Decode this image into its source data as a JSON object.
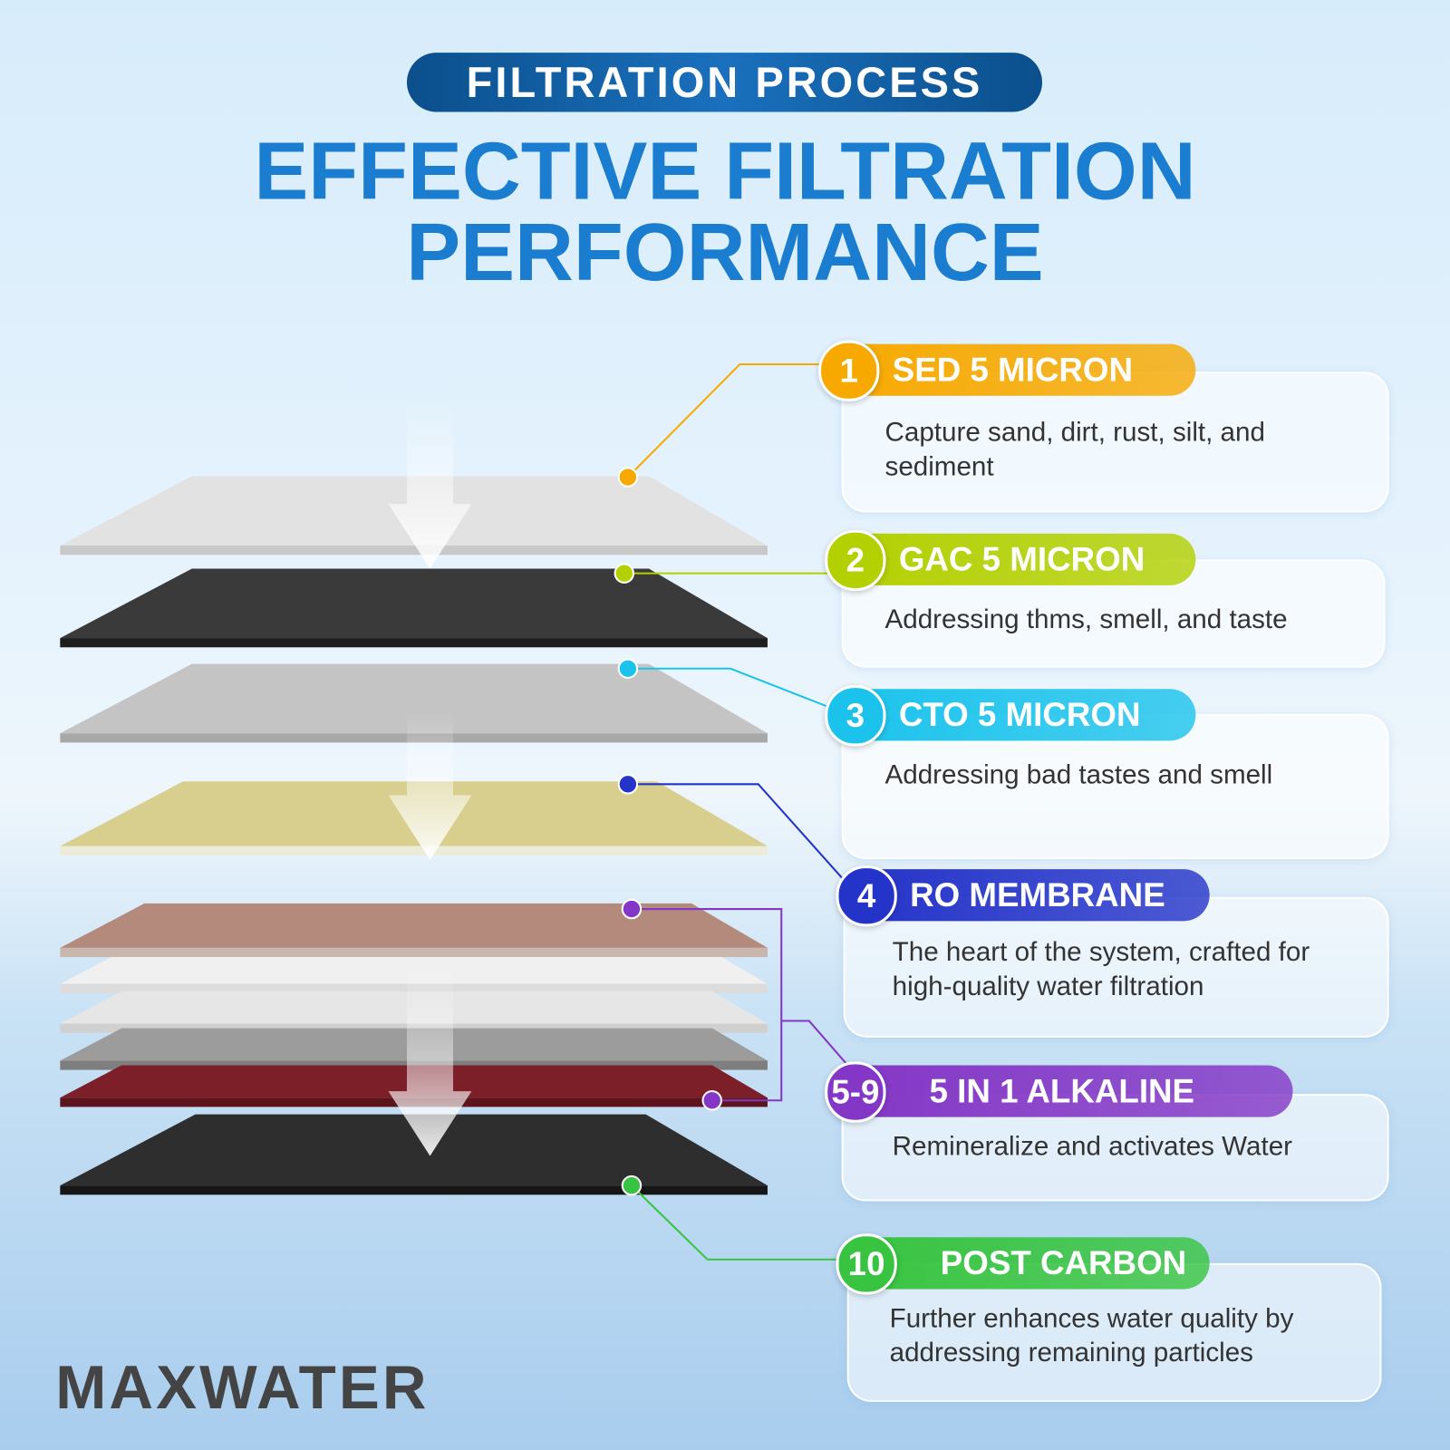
{
  "header": {
    "badge": "FILTRATION PROCESS",
    "title": [
      "EFFECTIVE FILTRATION",
      "PERFORMANCE"
    ]
  },
  "stages": [
    {
      "number": "1",
      "name": "SED 5 MICRON",
      "description": "Capture sand, dirt, rust, silt, and sediment",
      "color": "#f7a900"
    },
    {
      "number": "2",
      "name": "GAC 5 MICRON",
      "description": "Addressing thms, smell, and taste",
      "color": "#b3d000"
    },
    {
      "number": "3",
      "name": "CTO 5 MICRON",
      "description": "Addressing bad tastes and smell",
      "color": "#1bc3ec"
    },
    {
      "number": "4",
      "name": "RO MEMBRANE",
      "description": "The heart of the system, crafted for high-quality water filtration",
      "color": "#2433c8"
    },
    {
      "number": "5-9",
      "name": "5 IN 1 ALKALINE",
      "description": "Remineralize and activates Water",
      "color": "#8436c6"
    },
    {
      "number": "10",
      "name": "POST CARBON",
      "description": "Further enhances water quality by addressing remaining particles",
      "color": "#38c440"
    }
  ],
  "brand": "MAXWATER"
}
